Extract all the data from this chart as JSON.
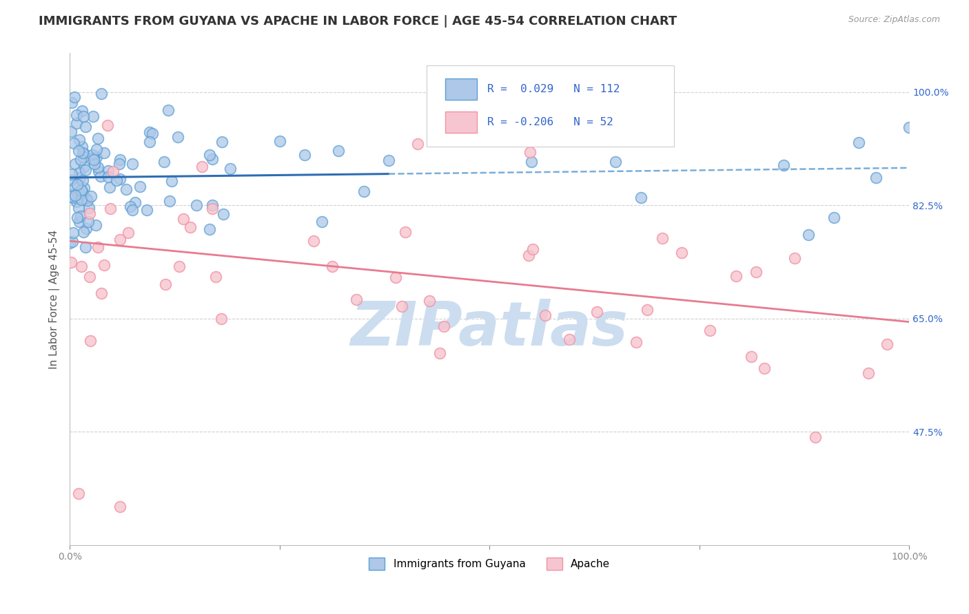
{
  "title": "IMMIGRANTS FROM GUYANA VS APACHE IN LABOR FORCE | AGE 45-54 CORRELATION CHART",
  "source_text": "Source: ZipAtlas.com",
  "ylabel": "In Labor Force | Age 45-54",
  "xlim": [
    0.0,
    1.0
  ],
  "ylim": [
    0.3,
    1.06
  ],
  "yticks": [
    0.475,
    0.65,
    0.825,
    1.0
  ],
  "ytick_labels": [
    "47.5%",
    "65.0%",
    "82.5%",
    "100.0%"
  ],
  "xticks": [
    0.0,
    0.25,
    0.5,
    0.75,
    1.0
  ],
  "xtick_labels": [
    "0.0%",
    "",
    "",
    "",
    "100.0%"
  ],
  "guyana_color": "#adc8e8",
  "guyana_edge": "#5b9fd4",
  "apache_color": "#f7c5cf",
  "apache_edge": "#f093a5",
  "guyana_line_color": "#2e6db4",
  "guyana_dash_color": "#7aaed6",
  "apache_line_color": "#e87a90",
  "background_color": "#ffffff",
  "watermark_color": "#ccddf0",
  "grid_color": "#d0d0d0",
  "title_fontsize": 13,
  "axis_label_fontsize": 11,
  "tick_fontsize": 10,
  "guyana_R": 0.029,
  "guyana_N": 112,
  "apache_R": -0.206,
  "apache_N": 52,
  "guyana_intercept": 0.868,
  "guyana_slope": 0.015,
  "apache_intercept": 0.77,
  "apache_slope": -0.125,
  "solid_line_end": 0.38
}
